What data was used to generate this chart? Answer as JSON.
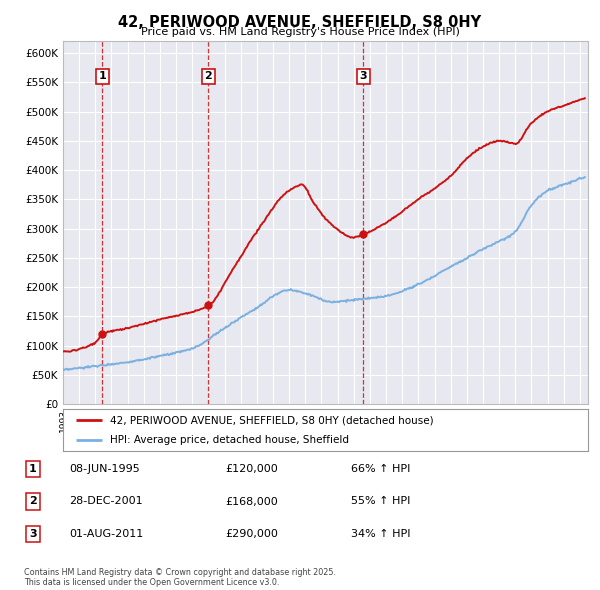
{
  "title": "42, PERIWOOD AVENUE, SHEFFIELD, S8 0HY",
  "subtitle": "Price paid vs. HM Land Registry's House Price Index (HPI)",
  "ylim": [
    0,
    620000
  ],
  "yticks": [
    0,
    50000,
    100000,
    150000,
    200000,
    250000,
    300000,
    350000,
    400000,
    450000,
    500000,
    550000,
    600000
  ],
  "ytick_labels": [
    "£0",
    "£50K",
    "£100K",
    "£150K",
    "£200K",
    "£250K",
    "£300K",
    "£350K",
    "£400K",
    "£450K",
    "£500K",
    "£550K",
    "£600K"
  ],
  "hpi_color": "#7ab0e0",
  "price_color": "#cc1111",
  "vline_color": "#cc1111",
  "bg_color": "#ffffff",
  "plot_bg": "#e8e8f0",
  "grid_color": "#ffffff",
  "purchases": [
    {
      "date_num": 1995.44,
      "price": 120000,
      "label": "1"
    },
    {
      "date_num": 2001.99,
      "price": 168000,
      "label": "2"
    },
    {
      "date_num": 2011.58,
      "price": 290000,
      "label": "3"
    }
  ],
  "legend_line1": "42, PERIWOOD AVENUE, SHEFFIELD, S8 0HY (detached house)",
  "legend_line2": "HPI: Average price, detached house, Sheffield",
  "table_rows": [
    {
      "num": "1",
      "date": "08-JUN-1995",
      "price": "£120,000",
      "change": "66% ↑ HPI"
    },
    {
      "num": "2",
      "date": "28-DEC-2001",
      "price": "£168,000",
      "change": "55% ↑ HPI"
    },
    {
      "num": "3",
      "date": "01-AUG-2011",
      "price": "£290,000",
      "change": "34% ↑ HPI"
    }
  ],
  "footer": "Contains HM Land Registry data © Crown copyright and database right 2025.\nThis data is licensed under the Open Government Licence v3.0.",
  "hpi_keypoints": [
    [
      1993.0,
      58000
    ],
    [
      1995.0,
      65000
    ],
    [
      1997.0,
      72000
    ],
    [
      1999.0,
      82000
    ],
    [
      2001.0,
      95000
    ],
    [
      2003.0,
      130000
    ],
    [
      2005.0,
      165000
    ],
    [
      2007.0,
      195000
    ],
    [
      2008.5,
      185000
    ],
    [
      2009.5,
      175000
    ],
    [
      2011.0,
      178000
    ],
    [
      2013.0,
      185000
    ],
    [
      2015.0,
      205000
    ],
    [
      2017.0,
      235000
    ],
    [
      2019.0,
      265000
    ],
    [
      2021.0,
      295000
    ],
    [
      2022.0,
      340000
    ],
    [
      2023.0,
      365000
    ],
    [
      2024.0,
      375000
    ],
    [
      2025.0,
      385000
    ]
  ],
  "price_keypoints": [
    [
      1993.0,
      90000
    ],
    [
      1995.0,
      105000
    ],
    [
      1995.44,
      120000
    ],
    [
      1997.0,
      130000
    ],
    [
      1999.0,
      145000
    ],
    [
      2001.99,
      168000
    ],
    [
      2003.5,
      230000
    ],
    [
      2005.0,
      295000
    ],
    [
      2007.0,
      365000
    ],
    [
      2007.8,
      375000
    ],
    [
      2008.5,
      345000
    ],
    [
      2009.5,
      310000
    ],
    [
      2011.0,
      285000
    ],
    [
      2011.58,
      290000
    ],
    [
      2013.0,
      310000
    ],
    [
      2015.0,
      350000
    ],
    [
      2017.0,
      390000
    ],
    [
      2018.0,
      420000
    ],
    [
      2019.0,
      440000
    ],
    [
      2020.0,
      450000
    ],
    [
      2021.0,
      445000
    ],
    [
      2022.0,
      480000
    ],
    [
      2023.0,
      500000
    ],
    [
      2024.0,
      510000
    ],
    [
      2025.0,
      520000
    ]
  ]
}
